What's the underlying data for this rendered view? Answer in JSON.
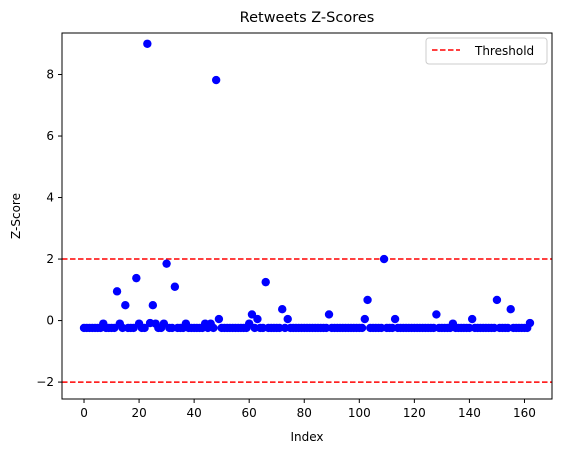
{
  "chart_data": {
    "type": "scatter",
    "title": "Retweets Z-Scores",
    "xlabel": "Index",
    "ylabel": "Z-Score",
    "xlim": [
      -8,
      170
    ],
    "ylim": [
      -2.55,
      9.35
    ],
    "xticks": [
      0,
      20,
      40,
      60,
      80,
      100,
      120,
      140,
      160
    ],
    "yticks": [
      -2,
      0,
      2,
      4,
      6,
      8
    ],
    "ytick_labels": [
      "−2",
      "0",
      "2",
      "4",
      "6",
      "8"
    ],
    "grid": false,
    "legend": {
      "position": "top-right",
      "entries": [
        {
          "label": "Threshold",
          "style": "dashed-line",
          "color": "#ff0000"
        }
      ]
    },
    "thresholds": [
      2,
      -2
    ],
    "point_color": "#0000ff",
    "threshold_color": "#ff0000",
    "baseline": -0.24,
    "x_count": 163,
    "outliers": [
      [
        7,
        -0.1
      ],
      [
        12,
        0.95
      ],
      [
        13,
        -0.1
      ],
      [
        15,
        0.5
      ],
      [
        19,
        1.38
      ],
      [
        20,
        -0.1
      ],
      [
        23,
        9.0
      ],
      [
        24,
        -0.08
      ],
      [
        25,
        0.5
      ],
      [
        26,
        -0.1
      ],
      [
        29,
        -0.1
      ],
      [
        30,
        1.85
      ],
      [
        33,
        1.1
      ],
      [
        37,
        -0.1
      ],
      [
        44,
        -0.1
      ],
      [
        46,
        -0.1
      ],
      [
        48,
        7.82
      ],
      [
        49,
        0.05
      ],
      [
        60,
        -0.1
      ],
      [
        61,
        0.2
      ],
      [
        63,
        0.05
      ],
      [
        66,
        1.25
      ],
      [
        72,
        0.37
      ],
      [
        74,
        0.05
      ],
      [
        89,
        0.2
      ],
      [
        102,
        0.05
      ],
      [
        103,
        0.67
      ],
      [
        109,
        2.0
      ],
      [
        113,
        0.05
      ],
      [
        128,
        0.2
      ],
      [
        134,
        -0.1
      ],
      [
        141,
        0.05
      ],
      [
        150,
        0.67
      ],
      [
        155,
        0.37
      ],
      [
        162,
        -0.08
      ]
    ]
  }
}
